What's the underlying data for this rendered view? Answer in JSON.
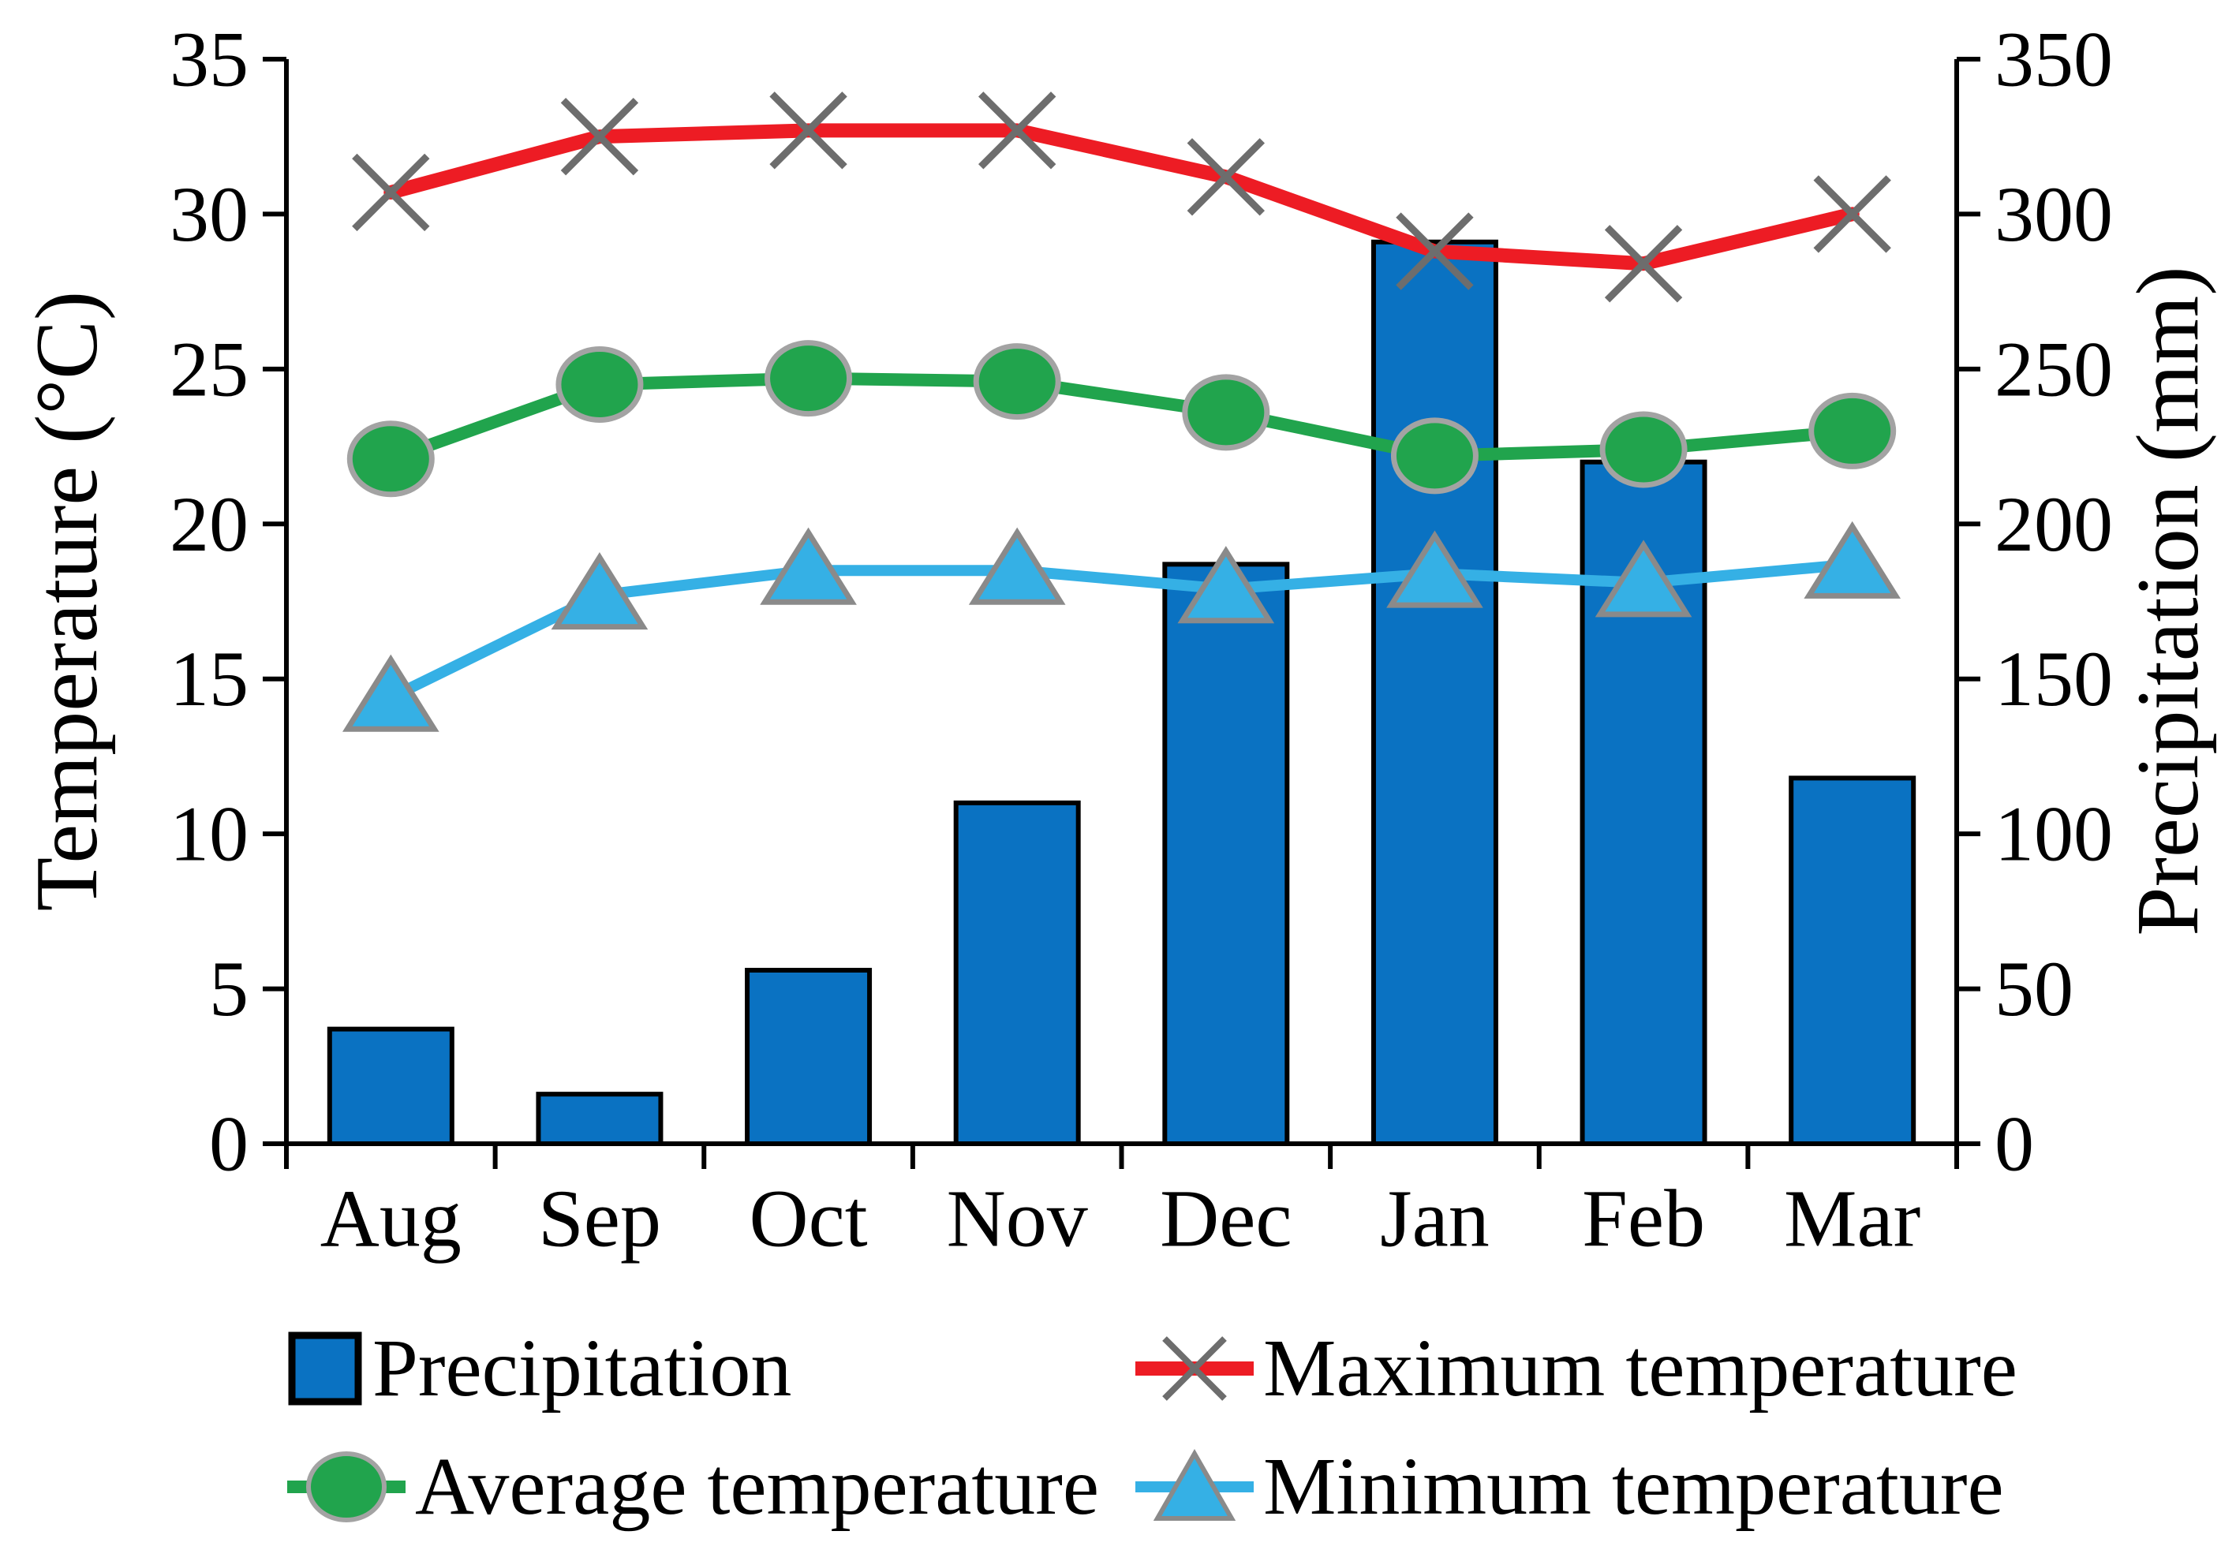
{
  "chart_data": {
    "type": "bar+line combo",
    "categories": [
      "Aug",
      "Sep",
      "Oct",
      "Nov",
      "Dec",
      "Jan",
      "Feb",
      "Mar"
    ],
    "series": [
      {
        "name": "Precipitation",
        "type": "bar",
        "axis": "right",
        "values": [
          37,
          16,
          56,
          110,
          187,
          291,
          220,
          118
        ],
        "color": "#0a72c2",
        "border_color": "#000000",
        "marker": "square"
      },
      {
        "name": "Maximum temperature",
        "type": "line",
        "axis": "left",
        "values": [
          30.7,
          32.5,
          32.7,
          32.7,
          31.2,
          28.8,
          28.4,
          30.0
        ],
        "color": "#ed1c24",
        "marker": "x",
        "marker_color": "#6d6d6d"
      },
      {
        "name": "Average temperature",
        "type": "line",
        "axis": "left",
        "values": [
          22.1,
          24.5,
          24.7,
          24.6,
          23.6,
          22.2,
          22.4,
          23.0
        ],
        "color": "#21a44d",
        "marker": "circle",
        "marker_fill": "#21a44d",
        "marker_border": "#a3a3a3"
      },
      {
        "name": "Minimum temperature",
        "type": "line",
        "axis": "left",
        "values": [
          14.4,
          17.7,
          18.5,
          18.5,
          17.9,
          18.4,
          18.1,
          18.7
        ],
        "color": "#35b0e5",
        "marker": "triangle",
        "marker_fill": "#35b0e5",
        "marker_border": "#8a8a8a"
      }
    ],
    "left_axis": {
      "label": "Temperature (°C)",
      "min": 0,
      "max": 35,
      "step": 5,
      "ticks": [
        0,
        5,
        10,
        15,
        20,
        25,
        30,
        35
      ]
    },
    "right_axis": {
      "label": "Precipitation (mm)",
      "min": 0,
      "max": 350,
      "step": 50,
      "ticks": [
        0,
        50,
        100,
        150,
        200,
        250,
        300,
        350
      ]
    },
    "grid": false,
    "legend_position": "bottom"
  },
  "legend": {
    "rows": [
      [
        {
          "label": "Precipitation",
          "swatch": "bar"
        },
        {
          "label": "Maximum temperature",
          "swatch": "x-line"
        }
      ],
      [
        {
          "label": "Average temperature",
          "swatch": "circle-line"
        },
        {
          "label": "Minimum temperature",
          "swatch": "triangle-line"
        }
      ]
    ]
  },
  "colors": {
    "bar_fill": "#0a72c2",
    "bar_border": "#000000",
    "max_line": "#ed1c24",
    "avg_line": "#21a44d",
    "min_line": "#35b0e5",
    "x_marker": "#6d6d6d",
    "circle_border": "#a3a3a3",
    "triangle_border": "#8a8a8a",
    "axis": "#000000",
    "text": "#000000"
  }
}
